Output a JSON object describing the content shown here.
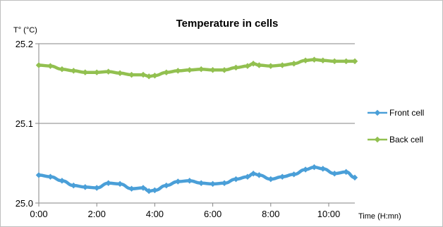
{
  "chart_data": {
    "type": "line",
    "title": "Temperature in cells",
    "ylabel": "T° (°C)",
    "xlabel": "Time (H:mn)",
    "xlim": [
      0,
      10.9
    ],
    "ylim": [
      25.0,
      25.2
    ],
    "x_ticks": [
      {
        "value": 0,
        "label": "0:00"
      },
      {
        "value": 2,
        "label": "2:00"
      },
      {
        "value": 4,
        "label": "4:00"
      },
      {
        "value": 6,
        "label": "6:00"
      },
      {
        "value": 8,
        "label": "8:00"
      },
      {
        "value": 10,
        "label": "10:00"
      }
    ],
    "y_ticks": [
      {
        "value": 25.0,
        "label": "25.0"
      },
      {
        "value": 25.1,
        "label": "25.1"
      },
      {
        "value": 25.2,
        "label": "25.2"
      }
    ],
    "grid": "horizontal",
    "legend": "right",
    "x": [
      0,
      0.4,
      0.8,
      1.2,
      1.6,
      2.0,
      2.4,
      2.8,
      3.2,
      3.6,
      3.8,
      4.0,
      4.4,
      4.8,
      5.2,
      5.6,
      6.0,
      6.4,
      6.8,
      7.2,
      7.4,
      7.6,
      8.0,
      8.4,
      8.8,
      9.2,
      9.5,
      9.8,
      10.2,
      10.6,
      10.9
    ],
    "series": [
      {
        "name": "Front cell",
        "color": "#4A9FD8",
        "values": [
          25.035,
          25.033,
          25.028,
          25.022,
          25.02,
          25.019,
          25.025,
          25.024,
          25.018,
          25.019,
          25.015,
          25.016,
          25.022,
          25.027,
          25.028,
          25.025,
          25.024,
          25.025,
          25.03,
          25.033,
          25.037,
          25.035,
          25.03,
          25.033,
          25.036,
          25.042,
          25.045,
          25.043,
          25.037,
          25.039,
          25.032
        ]
      },
      {
        "name": "Back cell",
        "color": "#92C050",
        "values": [
          25.173,
          25.172,
          25.168,
          25.166,
          25.164,
          25.164,
          25.165,
          25.163,
          25.161,
          25.161,
          25.159,
          25.16,
          25.164,
          25.166,
          25.167,
          25.168,
          25.167,
          25.167,
          25.17,
          25.172,
          25.175,
          25.173,
          25.172,
          25.173,
          25.175,
          25.179,
          25.18,
          25.179,
          25.178,
          25.178,
          25.178
        ]
      }
    ]
  }
}
